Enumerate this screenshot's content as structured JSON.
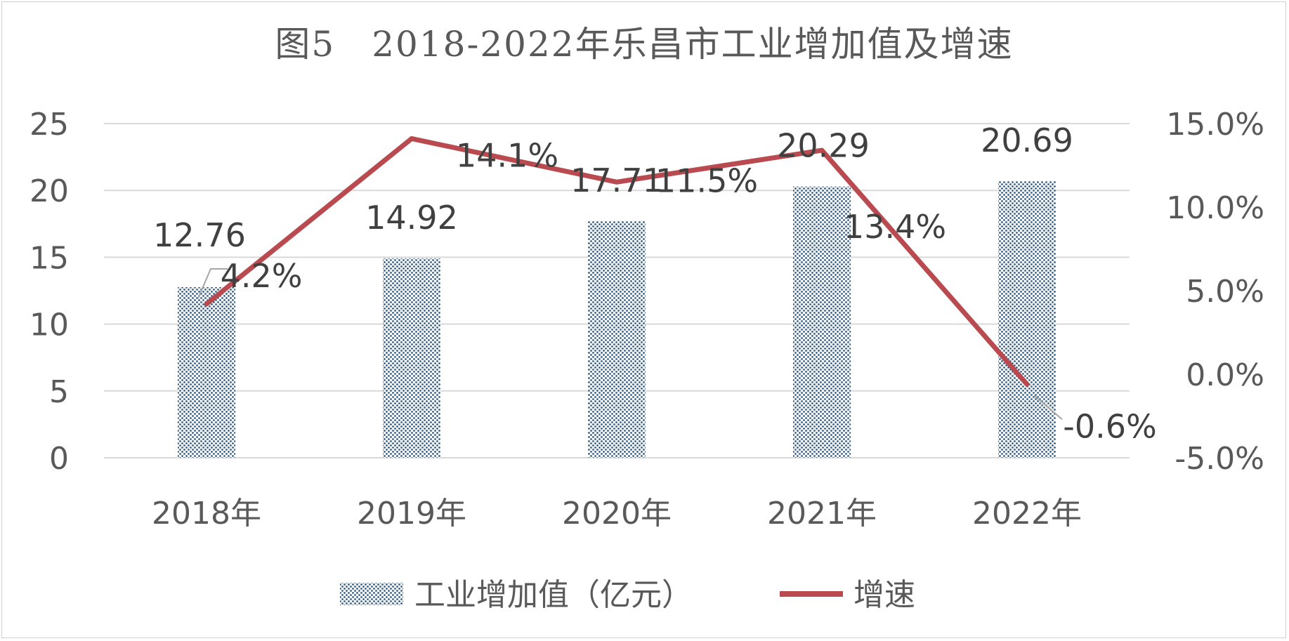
{
  "chart_data": {
    "type": "bar",
    "title": "图5　2018-2022年乐昌市工业增加值及增速",
    "categories": [
      "2018年",
      "2019年",
      "2020年",
      "2021年",
      "2022年"
    ],
    "series": [
      {
        "name": "工业增加值（亿元）",
        "type": "bar",
        "axis": "left",
        "values": [
          12.76,
          14.92,
          17.71,
          20.29,
          20.69
        ],
        "labels": [
          "12.76",
          "14.92",
          "17.71",
          "20.29",
          "20.69"
        ],
        "color": "#2e5e8c",
        "pattern": "dotted"
      },
      {
        "name": "增速",
        "type": "line",
        "axis": "right",
        "values": [
          4.2,
          14.1,
          11.5,
          13.4,
          -0.6
        ],
        "labels": [
          "4.2%",
          "14.1%",
          "11.5%",
          "13.4%",
          "-0.6%"
        ],
        "color": "#b94a4f"
      }
    ],
    "y_left": {
      "min": 0,
      "max": 25,
      "ticks": [
        "0",
        "5",
        "10",
        "15",
        "20",
        "25"
      ]
    },
    "y_right": {
      "min": -5,
      "max": 15,
      "ticks": [
        "-5.0%",
        "0.0%",
        "5.0%",
        "10.0%",
        "15.0%"
      ]
    },
    "grid": true,
    "legend": "bottom"
  }
}
